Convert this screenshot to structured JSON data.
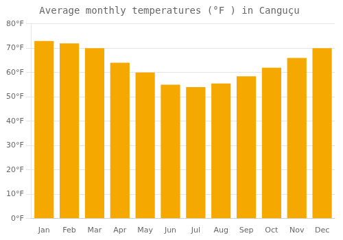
{
  "chart_data": {
    "type": "bar",
    "title": "Average monthly temperatures (°F ) in Canguçu",
    "categories": [
      "Jan",
      "Feb",
      "Mar",
      "Apr",
      "May",
      "Jun",
      "Jul",
      "Aug",
      "Sep",
      "Oct",
      "Nov",
      "Dec"
    ],
    "values": [
      73,
      72,
      70,
      64,
      60,
      55,
      54,
      55.5,
      58.5,
      62,
      66,
      70
    ],
    "color": "#F5A800",
    "ylim": [
      0,
      80
    ],
    "yticks": [
      {
        "value": 0,
        "label": "0°F"
      },
      {
        "value": 10,
        "label": "10°F"
      },
      {
        "value": 20,
        "label": "20°F"
      },
      {
        "value": 30,
        "label": "30°F"
      },
      {
        "value": 40,
        "label": "40°F"
      },
      {
        "value": 50,
        "label": "50°F"
      },
      {
        "value": 60,
        "label": "60°F"
      },
      {
        "value": 70,
        "label": "70°F"
      },
      {
        "value": 80,
        "label": "80°F"
      }
    ],
    "grid": true
  }
}
